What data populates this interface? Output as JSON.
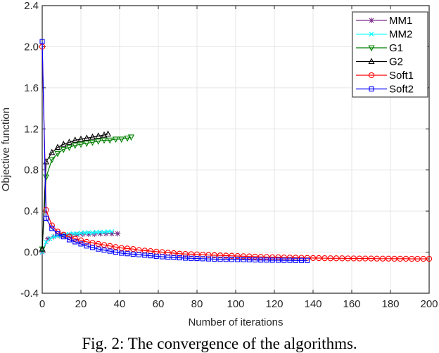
{
  "chart_data": {
    "type": "line",
    "title": "",
    "xlabel": "Number of iterations",
    "ylabel": "Objective function",
    "xlim": [
      0,
      200
    ],
    "ylim": [
      -0.4,
      2.4
    ],
    "xticks": [
      "0",
      "20",
      "40",
      "60",
      "80",
      "100",
      "120",
      "140",
      "160",
      "180",
      "200"
    ],
    "yticks": [
      "-0.4",
      "0.0",
      "0.4",
      "0.8",
      "1.2",
      "1.6",
      "2.0",
      "2.4"
    ],
    "grid": true,
    "legend_position": "top-right",
    "series": [
      {
        "name": "MM1",
        "color": "#7e2f8e",
        "marker": "star",
        "x": [
          0,
          3,
          6,
          9,
          12,
          15,
          18,
          21,
          24,
          27,
          30,
          33,
          36,
          39
        ],
        "y": [
          0.0,
          0.13,
          0.15,
          0.16,
          0.165,
          0.17,
          0.17,
          0.175,
          0.175,
          0.175,
          0.18,
          0.18,
          0.18,
          0.18
        ]
      },
      {
        "name": "MM2",
        "color": "#00ffff",
        "marker": "x",
        "x": [
          0,
          2,
          4,
          6,
          8,
          10,
          12,
          14,
          16,
          18,
          20,
          22,
          24,
          26,
          28,
          30,
          32,
          34,
          36
        ],
        "y": [
          0.0,
          0.1,
          0.13,
          0.15,
          0.16,
          0.165,
          0.17,
          0.175,
          0.18,
          0.18,
          0.185,
          0.19,
          0.19,
          0.19,
          0.195,
          0.195,
          0.195,
          0.2,
          0.2
        ]
      },
      {
        "name": "G1",
        "color": "#008000",
        "marker": "triangle-down",
        "x": [
          0,
          2,
          5,
          8,
          11,
          14,
          17,
          20,
          23,
          26,
          29,
          32,
          35,
          38,
          41,
          44,
          46
        ],
        "y": [
          0.03,
          0.73,
          0.9,
          0.96,
          1.0,
          1.02,
          1.04,
          1.05,
          1.06,
          1.07,
          1.08,
          1.09,
          1.09,
          1.1,
          1.1,
          1.11,
          1.12
        ]
      },
      {
        "name": "G2",
        "color": "#000000",
        "marker": "triangle-up",
        "x": [
          0,
          2,
          5,
          8,
          11,
          14,
          17,
          20,
          23,
          26,
          29,
          32,
          34
        ],
        "y": [
          0.03,
          0.88,
          0.97,
          1.02,
          1.05,
          1.07,
          1.09,
          1.1,
          1.11,
          1.12,
          1.13,
          1.14,
          1.15
        ]
      },
      {
        "name": "Soft1",
        "color": "#ff0000",
        "marker": "circle",
        "x": [
          0,
          2,
          5,
          8,
          11,
          14,
          17,
          20,
          23,
          26,
          29,
          32,
          35,
          38,
          41,
          44,
          47,
          50,
          53,
          56,
          59,
          62,
          65,
          68,
          71,
          74,
          77,
          80,
          83,
          86,
          89,
          92,
          95,
          98,
          101,
          104,
          107,
          110,
          113,
          116,
          119,
          122,
          125,
          128,
          131,
          134,
          137,
          140,
          143,
          146,
          149,
          152,
          155,
          158,
          161,
          164,
          167,
          170,
          173,
          176,
          179,
          182,
          185,
          188,
          191,
          194,
          197,
          200
        ],
        "y": [
          2.0,
          0.41,
          0.26,
          0.2,
          0.17,
          0.15,
          0.13,
          0.115,
          0.1,
          0.09,
          0.08,
          0.07,
          0.06,
          0.05,
          0.04,
          0.035,
          0.03,
          0.02,
          0.015,
          0.01,
          0.005,
          0.0,
          -0.005,
          -0.01,
          -0.015,
          -0.018,
          -0.02,
          -0.022,
          -0.025,
          -0.028,
          -0.03,
          -0.032,
          -0.034,
          -0.036,
          -0.038,
          -0.04,
          -0.042,
          -0.044,
          -0.046,
          -0.048,
          -0.05,
          -0.05,
          -0.052,
          -0.053,
          -0.054,
          -0.055,
          -0.056,
          -0.057,
          -0.058,
          -0.059,
          -0.06,
          -0.06,
          -0.06,
          -0.061,
          -0.061,
          -0.062,
          -0.062,
          -0.062,
          -0.063,
          -0.063,
          -0.063,
          -0.064,
          -0.064,
          -0.064,
          -0.065,
          -0.065,
          -0.065,
          -0.065
        ]
      },
      {
        "name": "Soft2",
        "color": "#0000ff",
        "marker": "square",
        "x": [
          0,
          2,
          5,
          8,
          11,
          14,
          17,
          20,
          23,
          26,
          29,
          32,
          35,
          38,
          41,
          44,
          47,
          50,
          53,
          56,
          59,
          62,
          65,
          68,
          71,
          74,
          77,
          80,
          83,
          86,
          89,
          92,
          95,
          98,
          101,
          104,
          107,
          110,
          113,
          116,
          119,
          122,
          125,
          128,
          131,
          134,
          137
        ],
        "y": [
          2.05,
          0.33,
          0.23,
          0.18,
          0.15,
          0.12,
          0.1,
          0.08,
          0.06,
          0.045,
          0.03,
          0.02,
          0.01,
          0.0,
          -0.01,
          -0.015,
          -0.02,
          -0.025,
          -0.03,
          -0.035,
          -0.04,
          -0.045,
          -0.05,
          -0.052,
          -0.055,
          -0.058,
          -0.06,
          -0.062,
          -0.064,
          -0.066,
          -0.068,
          -0.07,
          -0.071,
          -0.072,
          -0.073,
          -0.074,
          -0.075,
          -0.076,
          -0.077,
          -0.077,
          -0.078,
          -0.078,
          -0.079,
          -0.079,
          -0.08,
          -0.08,
          -0.08
        ]
      }
    ]
  },
  "caption": "Fig. 2: The convergence of the algorithms."
}
